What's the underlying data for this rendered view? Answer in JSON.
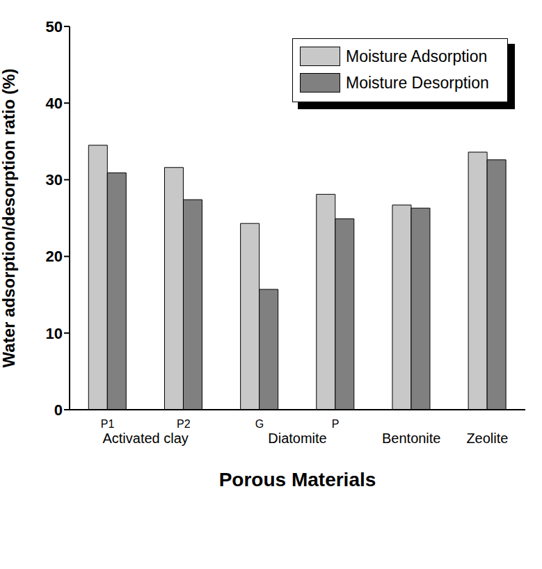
{
  "chart_data": {
    "type": "bar",
    "x_label": "Porous Materials",
    "y_label": "Water adsorption/desorption ratio (%)",
    "categories": [
      "P1",
      "P2",
      "G",
      "P",
      "Bentonite",
      "Zeolite"
    ],
    "category_groups": [
      {
        "label": "Activated clay",
        "members": [
          "P1",
          "P2"
        ]
      },
      {
        "label": "Diatomite",
        "members": [
          "G",
          "P"
        ]
      }
    ],
    "series": [
      {
        "name": "Moisture Adsorption",
        "color": "#c8c8c8",
        "values": [
          34.5,
          31.6,
          24.3,
          28.1,
          26.7,
          33.6
        ]
      },
      {
        "name": "Moisture Desorption",
        "color": "#808080",
        "values": [
          30.9,
          27.4,
          15.7,
          24.9,
          26.3,
          32.6
        ]
      }
    ],
    "ylim": [
      0,
      50
    ],
    "yticks": [
      0,
      10,
      20,
      30,
      40,
      50
    ],
    "grid": false,
    "legend": "upper right"
  }
}
